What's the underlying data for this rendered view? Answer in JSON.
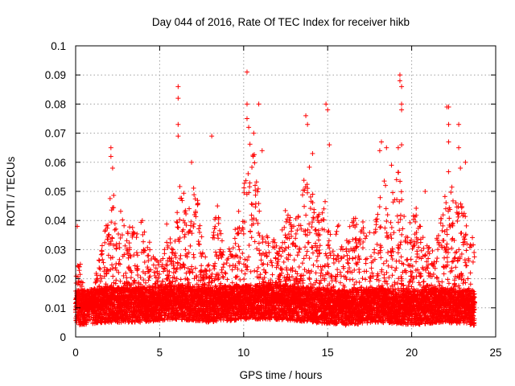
{
  "chart_data": {
    "type": "scatter",
    "title": "Day 044 of 2016, Rate Of TEC Index for receiver hikb",
    "xlabel": "GPS time / hours",
    "ylabel": "ROTI / TECUs",
    "xlim": [
      0,
      25
    ],
    "ylim": [
      0,
      0.1
    ],
    "x_ticks": [
      "0",
      "5",
      "10",
      "15",
      "20",
      "25"
    ],
    "y_ticks": [
      "0",
      "0.01",
      "0.02",
      "0.03",
      "0.04",
      "0.05",
      "0.06",
      "0.07",
      "0.08",
      "0.09",
      "0.1"
    ],
    "grid": true,
    "marker": "+",
    "marker_color": "#ff0000",
    "series": [
      {
        "x_range": [
          0,
          23.75
        ],
        "x_step": 0.0083,
        "baseline": [
          [
            0,
            0.01
          ],
          [
            2,
            0.011
          ],
          [
            4,
            0.011
          ],
          [
            6,
            0.012
          ],
          [
            8,
            0.011
          ],
          [
            10,
            0.012
          ],
          [
            12,
            0.012
          ],
          [
            14,
            0.011
          ],
          [
            16,
            0.01
          ],
          [
            18,
            0.011
          ],
          [
            20,
            0.01
          ],
          [
            22,
            0.011
          ],
          [
            23.75,
            0.01
          ]
        ],
        "envelope": [
          [
            0,
            0.02
          ],
          [
            0.2,
            0.03
          ],
          [
            0.5,
            0.015
          ],
          [
            1.0,
            0.015
          ],
          [
            1.5,
            0.03
          ],
          [
            1.8,
            0.04
          ],
          [
            2.1,
            0.065
          ],
          [
            2.4,
            0.04
          ],
          [
            2.7,
            0.045
          ],
          [
            3.0,
            0.035
          ],
          [
            3.3,
            0.04
          ],
          [
            3.7,
            0.035
          ],
          [
            4.1,
            0.045
          ],
          [
            4.5,
            0.03
          ],
          [
            5.0,
            0.025
          ],
          [
            5.4,
            0.04
          ],
          [
            5.8,
            0.03
          ],
          [
            6.3,
            0.06
          ],
          [
            6.6,
            0.04
          ],
          [
            6.9,
            0.055
          ],
          [
            7.2,
            0.05
          ],
          [
            7.6,
            0.03
          ],
          [
            8.0,
            0.025
          ],
          [
            8.4,
            0.055
          ],
          [
            8.8,
            0.035
          ],
          [
            9.3,
            0.03
          ],
          [
            9.7,
            0.045
          ],
          [
            10.1,
            0.055
          ],
          [
            10.4,
            0.075
          ],
          [
            10.8,
            0.06
          ],
          [
            11.2,
            0.035
          ],
          [
            11.7,
            0.035
          ],
          [
            12.1,
            0.03
          ],
          [
            12.5,
            0.045
          ],
          [
            12.8,
            0.045
          ],
          [
            13.2,
            0.04
          ],
          [
            13.6,
            0.055
          ],
          [
            13.9,
            0.06
          ],
          [
            14.3,
            0.04
          ],
          [
            14.8,
            0.05
          ],
          [
            15.2,
            0.035
          ],
          [
            15.6,
            0.04
          ],
          [
            16.0,
            0.03
          ],
          [
            16.4,
            0.04
          ],
          [
            16.8,
            0.045
          ],
          [
            17.2,
            0.04
          ],
          [
            17.6,
            0.035
          ],
          [
            18.0,
            0.045
          ],
          [
            18.4,
            0.055
          ],
          [
            18.8,
            0.05
          ],
          [
            19.2,
            0.06
          ],
          [
            19.5,
            0.045
          ],
          [
            19.9,
            0.04
          ],
          [
            20.3,
            0.045
          ],
          [
            20.7,
            0.035
          ],
          [
            21.1,
            0.03
          ],
          [
            21.5,
            0.035
          ],
          [
            21.9,
            0.045
          ],
          [
            22.2,
            0.06
          ],
          [
            22.6,
            0.05
          ],
          [
            23.0,
            0.055
          ],
          [
            23.4,
            0.045
          ],
          [
            23.75,
            0.03
          ]
        ],
        "outliers": [
          [
            0.1,
            0.038
          ],
          [
            2.1,
            0.065
          ],
          [
            2.1,
            0.062
          ],
          [
            2.2,
            0.058
          ],
          [
            6.1,
            0.086
          ],
          [
            6.1,
            0.082
          ],
          [
            6.1,
            0.073
          ],
          [
            6.1,
            0.069
          ],
          [
            6.9,
            0.06
          ],
          [
            8.1,
            0.069
          ],
          [
            10.2,
            0.091
          ],
          [
            10.2,
            0.08
          ],
          [
            10.2,
            0.075
          ],
          [
            10.3,
            0.072
          ],
          [
            10.6,
            0.07
          ],
          [
            10.9,
            0.08
          ],
          [
            11.1,
            0.064
          ],
          [
            13.7,
            0.076
          ],
          [
            13.8,
            0.073
          ],
          [
            14.1,
            0.063
          ],
          [
            14.9,
            0.08
          ],
          [
            15.0,
            0.078
          ],
          [
            15.1,
            0.066
          ],
          [
            18.1,
            0.064
          ],
          [
            18.2,
            0.067
          ],
          [
            18.5,
            0.065
          ],
          [
            18.8,
            0.059
          ],
          [
            19.2,
            0.065
          ],
          [
            19.3,
            0.09
          ],
          [
            19.3,
            0.088
          ],
          [
            19.4,
            0.086
          ],
          [
            19.4,
            0.08
          ],
          [
            19.4,
            0.078
          ],
          [
            19.4,
            0.066
          ],
          [
            20.8,
            0.05
          ],
          [
            22.1,
            0.079
          ],
          [
            22.2,
            0.079
          ],
          [
            22.2,
            0.073
          ],
          [
            22.2,
            0.067
          ],
          [
            22.8,
            0.073
          ],
          [
            22.8,
            0.065
          ],
          [
            22.9,
            0.058
          ],
          [
            23.2,
            0.06
          ]
        ]
      }
    ]
  }
}
